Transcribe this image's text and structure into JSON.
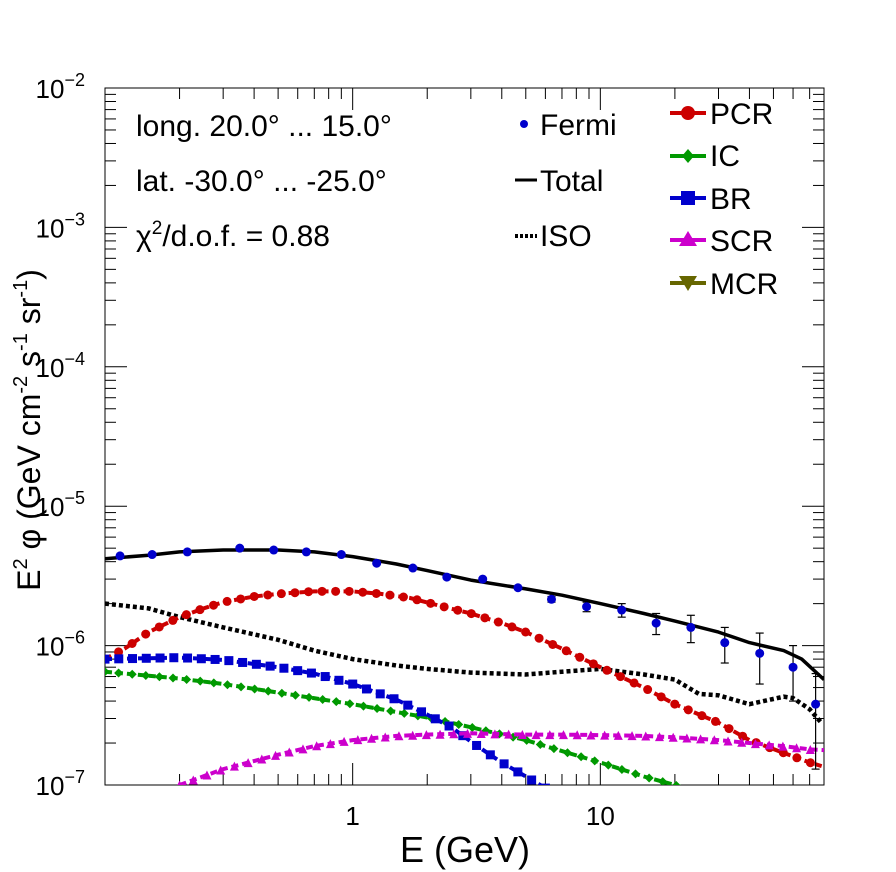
{
  "chart_data": {
    "type": "line",
    "x_scale": "log",
    "y_scale": "log",
    "xlim": [
      0.1,
      80
    ],
    "ylim": [
      1e-07,
      0.01
    ],
    "xlabel": "E (GeV)",
    "ylabel_main": "E",
    "ylabel_sup": "2",
    "ylabel_rest": " φ (GeV cm",
    "ylabel_sup2": "-2",
    "ylabel_s": " s",
    "ylabel_sup3": "-1",
    "ylabel_sr": " sr",
    "ylabel_sup4": "-1",
    "ylabel_close": ")",
    "x_ticks": [
      {
        "value": 1,
        "label": "1"
      },
      {
        "value": 10,
        "label": "10"
      }
    ],
    "y_ticks": [
      {
        "value": 1e-07,
        "base": "10",
        "exp": "−7"
      },
      {
        "value": 1e-06,
        "base": "10",
        "exp": "−6"
      },
      {
        "value": 1e-05,
        "base": "10",
        "exp": "−5"
      },
      {
        "value": 0.0001,
        "base": "10",
        "exp": "−4"
      },
      {
        "value": 0.001,
        "base": "10",
        "exp": "−3"
      },
      {
        "value": 0.01,
        "base": "10",
        "exp": "−2"
      }
    ],
    "annotations": {
      "longitude": "long. 20.0° ... 15.0°",
      "latitude": "lat. -30.0° ... -25.0°",
      "chi_symbol": "χ",
      "chi_sup": "2",
      "chi_rest": "/d.o.f. = 0.88"
    },
    "legend": {
      "placement": "top-right",
      "left_entries": [
        {
          "label": "Fermi",
          "style": "point"
        },
        {
          "label": "Total",
          "style": "solid"
        },
        {
          "label": "ISO",
          "style": "dotted"
        }
      ],
      "right_entries": [
        {
          "label": "PCR",
          "color": "#cc0000",
          "marker": "circle"
        },
        {
          "label": "IC",
          "color": "#009900",
          "marker": "diamond"
        },
        {
          "label": "BR",
          "color": "#0000cc",
          "marker": "square"
        },
        {
          "label": "SCR",
          "color": "#cc00cc",
          "marker": "triangle-up"
        },
        {
          "label": "MCR",
          "color": "#666600",
          "marker": "triangle-down"
        }
      ]
    },
    "series": [
      {
        "name": "Fermi",
        "kind": "points",
        "color": "#0000cc",
        "points": [
          {
            "x": 0.115,
            "y": 4.4e-06,
            "err": 0
          },
          {
            "x": 0.155,
            "y": 4.5e-06,
            "err": 0
          },
          {
            "x": 0.215,
            "y": 4.7e-06,
            "err": 0
          },
          {
            "x": 0.35,
            "y": 5e-06,
            "err": 0
          },
          {
            "x": 0.48,
            "y": 4.85e-06,
            "err": 0
          },
          {
            "x": 0.65,
            "y": 4.7e-06,
            "err": 0
          },
          {
            "x": 0.9,
            "y": 4.5e-06,
            "err": 0
          },
          {
            "x": 1.25,
            "y": 3.9e-06,
            "err": 0
          },
          {
            "x": 1.75,
            "y": 3.6e-06,
            "err": 0
          },
          {
            "x": 2.4,
            "y": 3.1e-06,
            "err": 0
          },
          {
            "x": 3.35,
            "y": 3e-06,
            "err": 0
          },
          {
            "x": 4.65,
            "y": 2.6e-06,
            "err": 0
          },
          {
            "x": 6.35,
            "y": 2.15e-06,
            "err": 1e-07
          },
          {
            "x": 8.8,
            "y": 1.9e-06,
            "err": 1.5e-07
          },
          {
            "x": 12.2,
            "y": 1.8e-06,
            "err": 2e-07
          },
          {
            "x": 16.8,
            "y": 1.45e-06,
            "err": 2.5e-07
          },
          {
            "x": 23.2,
            "y": 1.35e-06,
            "err": 3e-07
          },
          {
            "x": 31.8,
            "y": 1.05e-06,
            "err": 3e-07
          },
          {
            "x": 44.0,
            "y": 8.8e-07,
            "err": 3.5e-07
          },
          {
            "x": 60.0,
            "y": 7e-07,
            "err": 3e-07
          },
          {
            "x": 74.0,
            "y": 3.8e-07,
            "err": 2.5e-07
          }
        ]
      },
      {
        "name": "Total",
        "kind": "solid",
        "color": "#000000",
        "x": [
          0.1,
          0.15,
          0.2,
          0.3,
          0.5,
          0.7,
          1.0,
          1.5,
          2.0,
          3.0,
          5.0,
          7.0,
          10,
          15,
          20,
          30,
          40,
          55,
          65,
          80
        ],
        "y": [
          4.2e-06,
          4.45e-06,
          4.7e-06,
          4.85e-06,
          4.85e-06,
          4.7e-06,
          4.35e-06,
          3.85e-06,
          3.45e-06,
          2.95e-06,
          2.55e-06,
          2.3e-06,
          2e-06,
          1.7e-06,
          1.5e-06,
          1.25e-06,
          1.05e-06,
          9.2e-07,
          8e-07,
          5.7e-07
        ]
      },
      {
        "name": "ISO",
        "kind": "dotted",
        "color": "#000000",
        "x": [
          0.1,
          0.15,
          0.2,
          0.3,
          0.5,
          0.7,
          1.0,
          1.5,
          2.0,
          3.0,
          5.0,
          7.0,
          10,
          15,
          20,
          25,
          30,
          40,
          55,
          60,
          70,
          78
        ],
        "y": [
          2e-06,
          1.85e-06,
          1.6e-06,
          1.35e-06,
          1.1e-06,
          9.2e-07,
          8e-07,
          7.2e-07,
          6.8e-07,
          6.4e-07,
          6.2e-07,
          6.5e-07,
          6.8e-07,
          6.2e-07,
          5.7e-07,
          4.5e-07,
          4.4e-07,
          3.8e-07,
          4.3e-07,
          4.2e-07,
          3.5e-07,
          2.8e-07
        ]
      },
      {
        "name": "PCR",
        "kind": "marker-line",
        "marker": "circle",
        "color": "#cc0000",
        "x": [
          0.1,
          0.12,
          0.15,
          0.2,
          0.25,
          0.3,
          0.4,
          0.5,
          0.7,
          1.0,
          1.3,
          1.7,
          2.2,
          3.0,
          4.0,
          5.0,
          7.0,
          10,
          15,
          20,
          30,
          40,
          55,
          70,
          80
        ],
        "y": [
          8e-07,
          9.5e-07,
          1.25e-06,
          1.6e-06,
          1.85e-06,
          2.05e-06,
          2.25e-06,
          2.35e-06,
          2.45e-06,
          2.45e-06,
          2.35e-06,
          2.2e-06,
          1.95e-06,
          1.7e-06,
          1.45e-06,
          1.25e-06,
          9.5e-07,
          7e-07,
          5e-07,
          3.8e-07,
          2.8e-07,
          2.1e-07,
          1.7e-07,
          1.45e-07,
          1.35e-07
        ]
      },
      {
        "name": "IC",
        "kind": "marker-line",
        "marker": "diamond",
        "color": "#009900",
        "x": [
          0.1,
          0.2,
          0.3,
          0.5,
          1.0,
          2.0,
          3.0,
          5.0,
          7.0,
          10,
          15,
          20,
          23
        ],
        "y": [
          6.5e-07,
          5.8e-07,
          5.3e-07,
          4.6e-07,
          3.8e-07,
          3.05e-07,
          2.6e-07,
          2.1e-07,
          1.75e-07,
          1.45e-07,
          1.15e-07,
          1e-07,
          9.2e-08
        ]
      },
      {
        "name": "BR",
        "kind": "marker-line",
        "marker": "square",
        "color": "#0000cc",
        "x": [
          0.1,
          0.2,
          0.3,
          0.5,
          0.7,
          1.0,
          1.5,
          2.0,
          2.5,
          3.0,
          3.5,
          4.0,
          5.0,
          6.0
        ],
        "y": [
          8e-07,
          8.2e-07,
          7.9e-07,
          7e-07,
          6.3e-07,
          5.3e-07,
          4.1e-07,
          3.2e-07,
          2.6e-07,
          2.05e-07,
          1.7e-07,
          1.45e-07,
          1.15e-07,
          9.5e-08
        ]
      },
      {
        "name": "SCR",
        "kind": "marker-line",
        "marker": "triangle-up",
        "color": "#cc00cc",
        "x": [
          0.2,
          0.3,
          0.5,
          0.7,
          1.0,
          1.5,
          2.0,
          3.0,
          5.0,
          7.0,
          10,
          15,
          20,
          30,
          40,
          55,
          70,
          80
        ],
        "y": [
          1e-07,
          1.3e-07,
          1.65e-07,
          1.9e-07,
          2.1e-07,
          2.25e-07,
          2.3e-07,
          2.35e-07,
          2.3e-07,
          2.3e-07,
          2.28e-07,
          2.25e-07,
          2.2e-07,
          2.1e-07,
          2e-07,
          1.9e-07,
          1.8e-07,
          1.78e-07
        ]
      }
    ]
  }
}
